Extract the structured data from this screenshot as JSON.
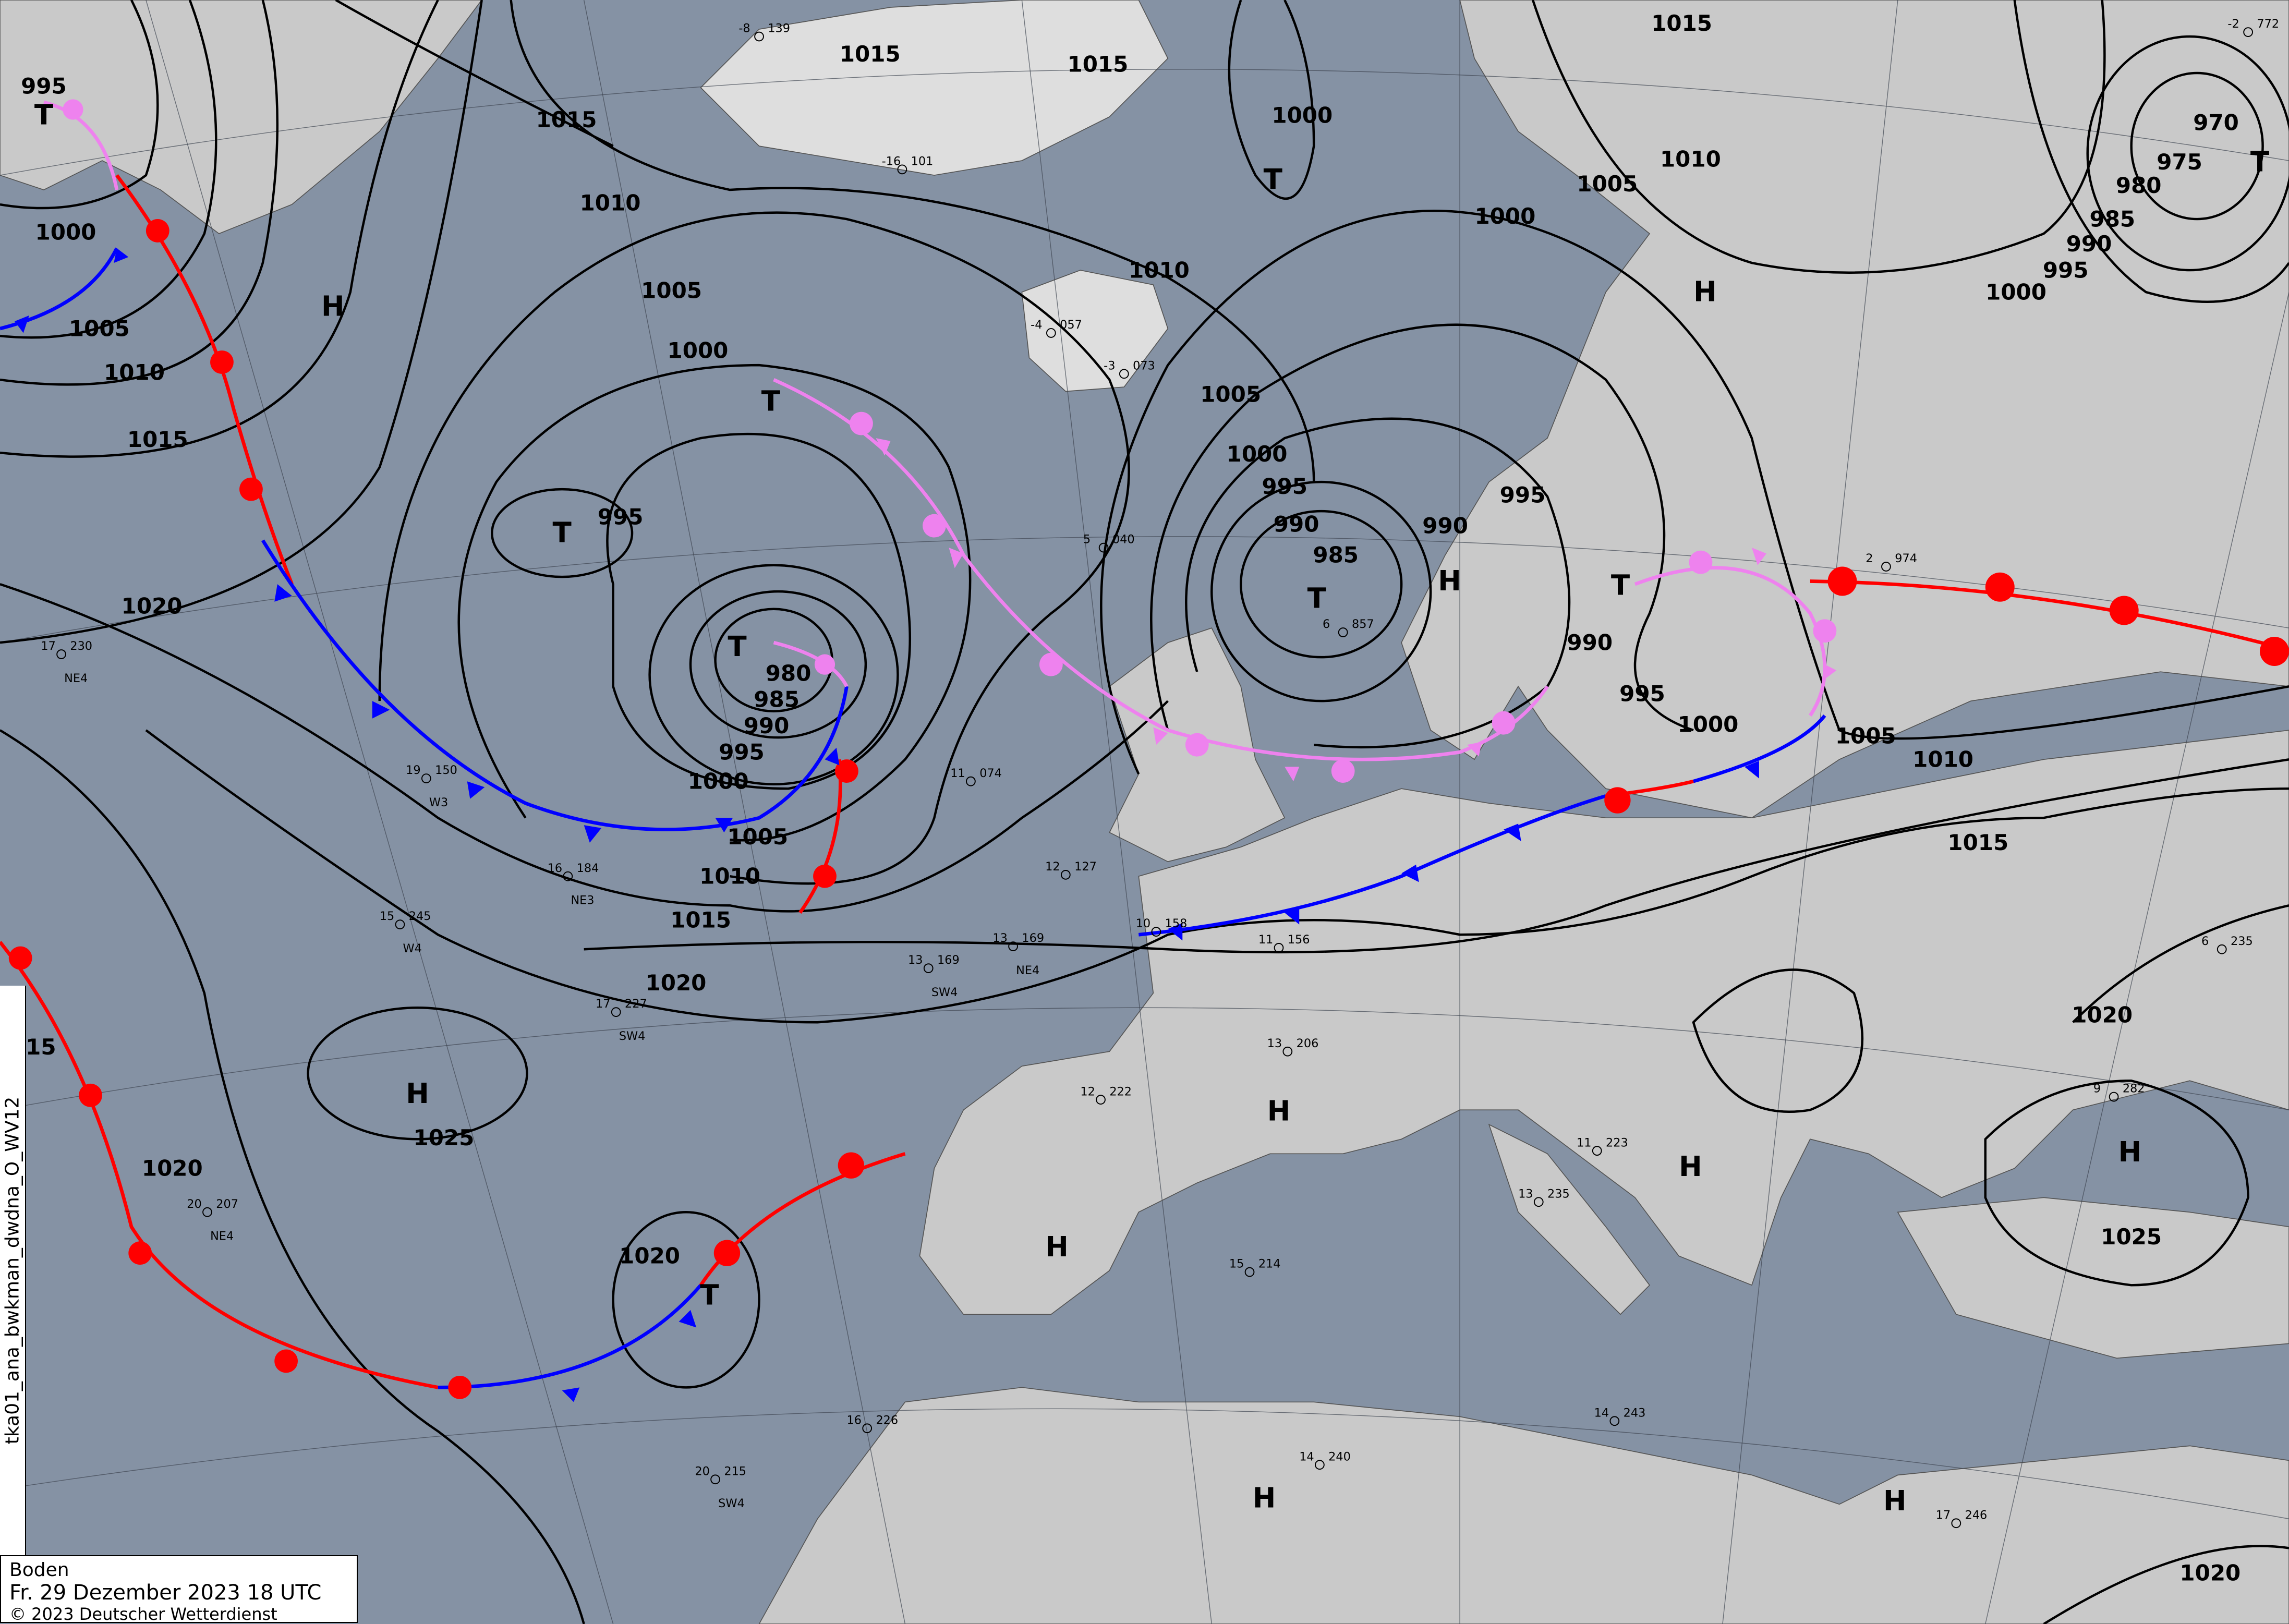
{
  "legend": {
    "level": "Boden",
    "datetime": "Fr. 29 Dezember 2023 18 UTC",
    "copyright": "© 2023 Deutscher Wetterdienst"
  },
  "product_id": "tka01_ana_bwkman_dwdna_O_WV12",
  "colors": {
    "ocean": "#8592a4",
    "land": "#c9c9c9",
    "cold_front": "#0000ff",
    "warm_front": "#ff0000",
    "occlusion": "#ee82ee",
    "isobar": "#000000"
  },
  "isobar_labels": [
    "995",
    "1000",
    "1005",
    "1010",
    "1015",
    "1020",
    "1015",
    "1010",
    "1005",
    "1000",
    "995",
    "980",
    "985",
    "990",
    "995",
    "1000",
    "1005",
    "1010",
    "1015",
    "1020",
    "1025",
    "1020",
    "1020",
    "15",
    "1015",
    "1015",
    "1000",
    "1010",
    "1005",
    "1000",
    "995",
    "990",
    "985",
    "990",
    "995",
    "1000",
    "1005",
    "1010",
    "1015",
    "990",
    "995",
    "1000",
    "1005",
    "1010",
    "1015",
    "1020",
    "1025",
    "1020",
    "980",
    "985",
    "990",
    "995",
    "1000",
    "970",
    "975"
  ],
  "pressure_centers": [
    "T",
    "H",
    "T",
    "T",
    "T",
    "H",
    "T",
    "T",
    "H",
    "T",
    "H",
    "T",
    "T",
    "H",
    "H",
    "H",
    "H",
    "H",
    "H"
  ],
  "stations": [
    {
      "t": "17",
      "p": "230",
      "w": "NE4"
    },
    {
      "t": "16",
      "p": "184",
      "w": "NE3"
    },
    {
      "t": "15",
      "p": "245",
      "w": "W4"
    },
    {
      "t": "17",
      "p": "227",
      "w": "SW4"
    },
    {
      "t": "13",
      "p": "169",
      "w": "SW4"
    },
    {
      "t": "13",
      "p": "169",
      "w": "NE4"
    },
    {
      "t": "20",
      "p": "207",
      "w": "NE4"
    },
    {
      "t": "20",
      "p": "215",
      "w": "SW4"
    },
    {
      "t": "19",
      "p": "150",
      "w": "W3"
    },
    {
      "t": "11",
      "p": "074",
      "w": ""
    },
    {
      "t": "12",
      "p": "127",
      "w": ""
    },
    {
      "t": "10",
      "p": "158",
      "w": ""
    },
    {
      "t": "11",
      "p": "156",
      "w": ""
    },
    {
      "t": "13",
      "p": "206",
      "w": ""
    },
    {
      "t": "12",
      "p": "222",
      "w": ""
    },
    {
      "t": "15",
      "p": "214",
      "w": ""
    },
    {
      "t": "16",
      "p": "226",
      "w": ""
    },
    {
      "t": "14",
      "p": "240",
      "w": ""
    },
    {
      "t": "11",
      "p": "223",
      "w": ""
    },
    {
      "t": "13",
      "p": "235",
      "w": ""
    },
    {
      "t": "14",
      "p": "243",
      "w": ""
    },
    {
      "t": "17",
      "p": "246",
      "w": ""
    },
    {
      "t": "9",
      "p": "282",
      "w": ""
    },
    {
      "t": "6",
      "p": "235",
      "w": ""
    },
    {
      "t": "-8",
      "p": "139",
      "w": ""
    },
    {
      "t": "-16",
      "p": "101",
      "w": ""
    },
    {
      "t": "-4",
      "p": "057",
      "w": ""
    },
    {
      "t": "-3",
      "p": "073",
      "w": ""
    },
    {
      "t": "5",
      "p": "040",
      "w": ""
    },
    {
      "t": "6",
      "p": "857",
      "w": ""
    },
    {
      "t": "2",
      "p": "974",
      "w": ""
    },
    {
      "t": "-2",
      "p": "772",
      "w": ""
    }
  ]
}
